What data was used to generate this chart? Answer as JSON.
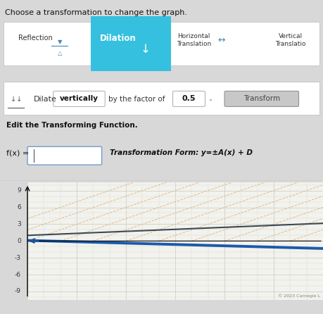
{
  "title": "Choose a transformation to change the graph.",
  "ui_bg": "#efefef",
  "graph_bg": "#f2f2ee",
  "grid_minor_color": "#d0d0c0",
  "grid_major_color": "#c0c0b0",
  "ylim": [
    -10.5,
    10.5
  ],
  "xlim": [
    0,
    18
  ],
  "yticks": [
    -9,
    -6,
    -3,
    0,
    3,
    6,
    9
  ],
  "dilation_btn_color": "#35c0e0",
  "dilation_btn_text": "Dilation",
  "reflection_text": "Reflection",
  "horiz_trans_text": "Horizontal\nTranslation",
  "vert_trans_text": "Vertical\nTranslatio",
  "dilate_label": "Dilate",
  "dilate_direction": "vertically",
  "factor_label": "by the factor of",
  "factor_value": "0.5",
  "transform_btn": "Transform",
  "edit_label": "Edit the Transforming Function.",
  "fx_label": "f(x) =",
  "transform_form": "Transformation Form: y=±A(x) + D",
  "line1_color": "#3a4a55",
  "line1_slope": 0.12,
  "line1_intercept": 1.0,
  "line2_color": "#1a5aaa",
  "line2_slope": -0.08,
  "line2_intercept": 0.1,
  "orange_diag_color": "#d89030",
  "copyright_text": "© 2023 Carnegie L",
  "taskbar_color": "#1a3570",
  "fig_bg": "#d8d8d8"
}
